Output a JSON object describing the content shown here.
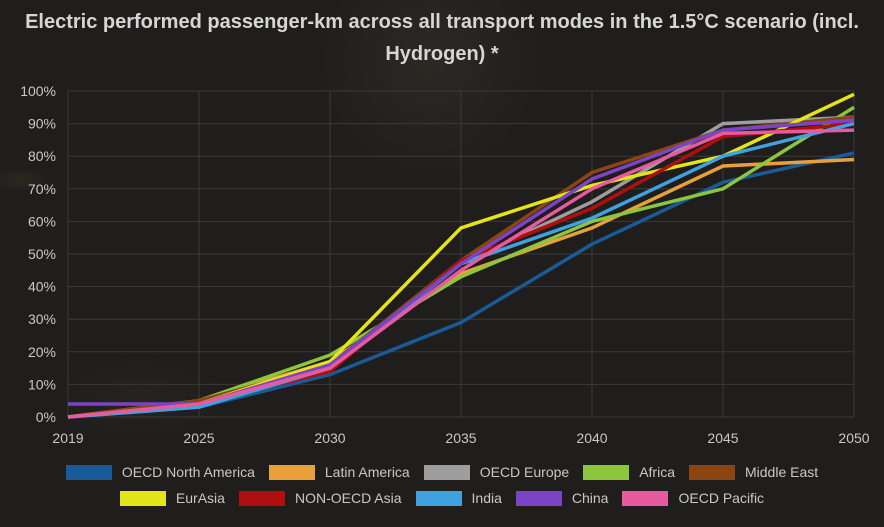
{
  "chart_data": {
    "type": "line",
    "title": "Electric performed passenger-km across all transport modes in the 1.5°C scenario (incl. Hydrogen) *",
    "title_lines": [
      "Electric performed passenger-km across all transport modes in the 1.5°C scenario (incl.",
      "Hydrogen) *"
    ],
    "xlabel": "",
    "ylabel": "",
    "x": [
      "2019",
      "2025",
      "2030",
      "2035",
      "2040",
      "2045",
      "2050"
    ],
    "ylim": [
      0,
      100
    ],
    "yticks": [
      "0%",
      "10%",
      "20%",
      "30%",
      "40%",
      "50%",
      "60%",
      "70%",
      "80%",
      "90%",
      "100%"
    ],
    "grid": true,
    "legend_position": "bottom",
    "series": [
      {
        "name": "OECD North America",
        "color": "#1a5a96",
        "values": [
          0,
          3,
          13,
          29,
          53,
          72,
          81
        ]
      },
      {
        "name": "Latin America",
        "color": "#e8a03c",
        "values": [
          0,
          5,
          17,
          44,
          58,
          77,
          79
        ]
      },
      {
        "name": "OECD Europe",
        "color": "#9e9e9e",
        "values": [
          0,
          4,
          15,
          47,
          66,
          90,
          92
        ]
      },
      {
        "name": "Africa",
        "color": "#8cc63e",
        "values": [
          0,
          5,
          19,
          43,
          60,
          70,
          95
        ]
      },
      {
        "name": "Middle East",
        "color": "#8b4513",
        "values": [
          0,
          5,
          16,
          48,
          75,
          88,
          92
        ]
      },
      {
        "name": "EurAsia",
        "color": "#e4e41a",
        "values": [
          0,
          4,
          17,
          58,
          71,
          80,
          99
        ]
      },
      {
        "name": "NON-OECD Asia",
        "color": "#b00f0f",
        "values": [
          0,
          4,
          14,
          48,
          64,
          86,
          90
        ]
      },
      {
        "name": "India",
        "color": "#3fa1e0",
        "values": [
          0,
          3,
          15,
          47,
          61,
          80,
          90
        ]
      },
      {
        "name": "China",
        "color": "#7a44c4",
        "values": [
          4,
          4,
          16,
          47,
          73,
          88,
          91
        ]
      },
      {
        "name": "OECD Pacific",
        "color": "#e85a9e",
        "values": [
          0,
          4,
          15,
          45,
          70,
          87,
          88
        ]
      }
    ]
  }
}
